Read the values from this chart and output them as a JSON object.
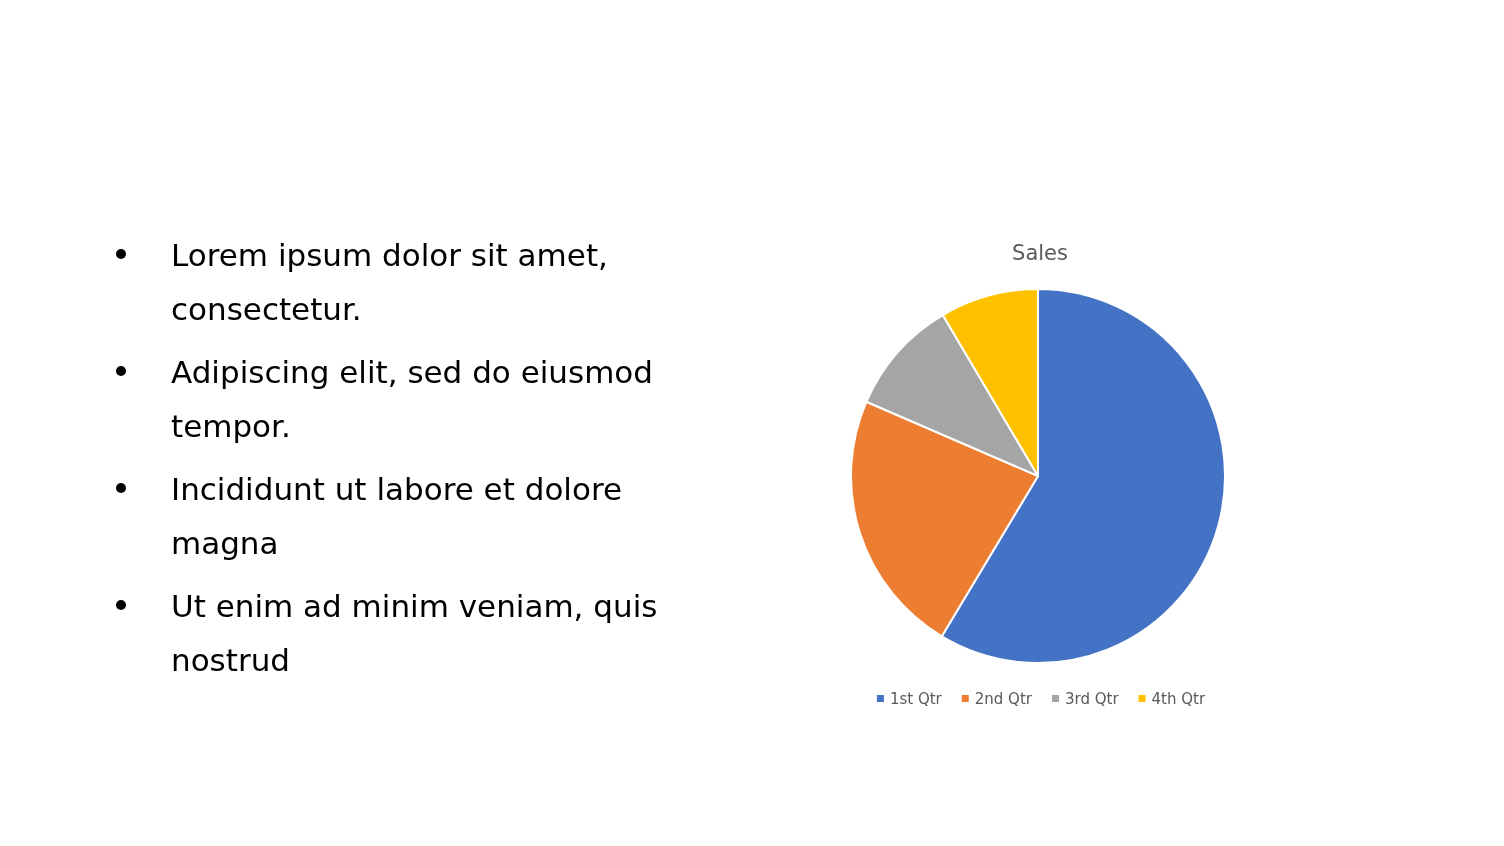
{
  "chart_data": {
    "type": "pie",
    "title": "Sales",
    "categories": [
      "1st Qtr",
      "2nd Qtr",
      "3rd Qtr",
      "4th Qtr"
    ],
    "values": [
      58.6,
      22.9,
      10.0,
      8.5
    ],
    "colors": [
      "#4472c4",
      "#ed7d31",
      "#a5a5a5",
      "#ffc000"
    ],
    "legend": "bottom",
    "annotations": [
      "Lorem ipsum dolor sit amet, consectetur.",
      "Adipiscing elit, sed do eiusmod tempor.",
      "Incididunt ut labore et dolore magna",
      "Ut enim ad minim veniam, quis nostrud"
    ]
  }
}
